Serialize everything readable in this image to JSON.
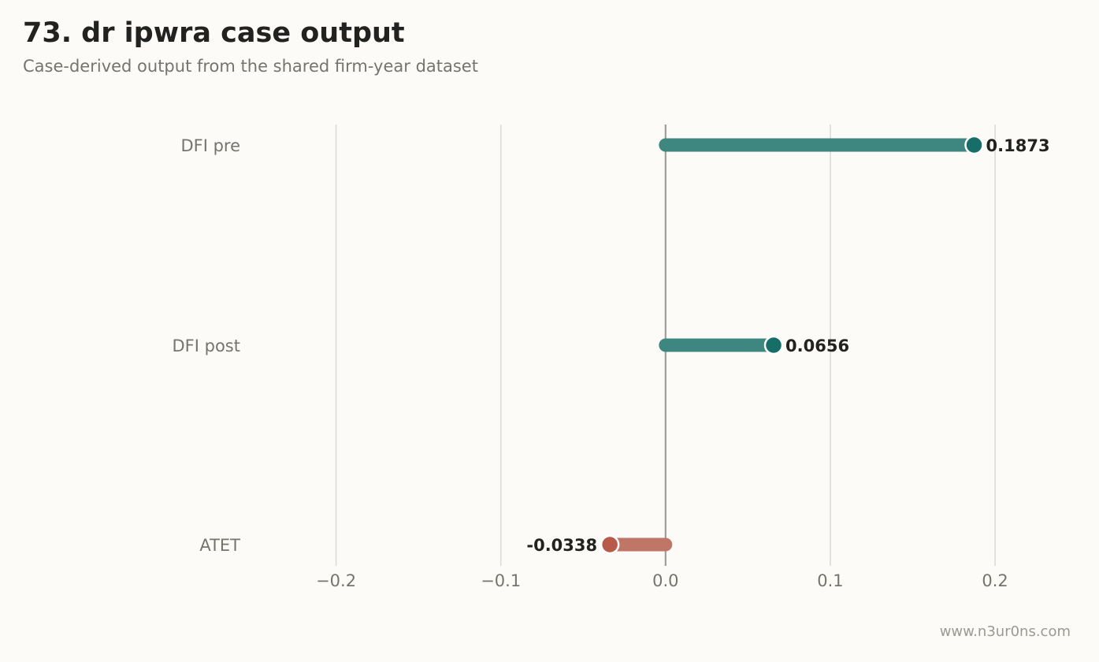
{
  "title": "73. dr ipwra case output",
  "subtitle": "Case-derived output from the shared firm-year dataset",
  "watermark": "www.n3ur0ns.com",
  "colors": {
    "background": "#fcfbf8",
    "positive_bar": "#3e8780",
    "positive_dot": "#176e68",
    "negative_bar": "#c07667",
    "negative_dot": "#b85a48",
    "grid": "#dddbd6",
    "zero_line": "#a09e99"
  },
  "chart_data": {
    "type": "bar",
    "orientation": "horizontal",
    "categories": [
      "DFI pre",
      "DFI post",
      "ATET"
    ],
    "values": [
      0.1873,
      0.0656,
      -0.0338
    ],
    "value_labels": [
      "0.1873",
      "0.0656",
      "-0.0338"
    ],
    "xlim": [
      -0.25,
      0.2406
    ],
    "xticks": [
      -0.2,
      -0.1,
      0.0,
      0.1,
      0.2
    ],
    "xtick_labels": [
      "−0.2",
      "−0.1",
      "0.0",
      "0.1",
      "0.2"
    ],
    "grid": "vertical",
    "title": "73. dr ipwra case output",
    "xlabel": "",
    "ylabel": ""
  }
}
